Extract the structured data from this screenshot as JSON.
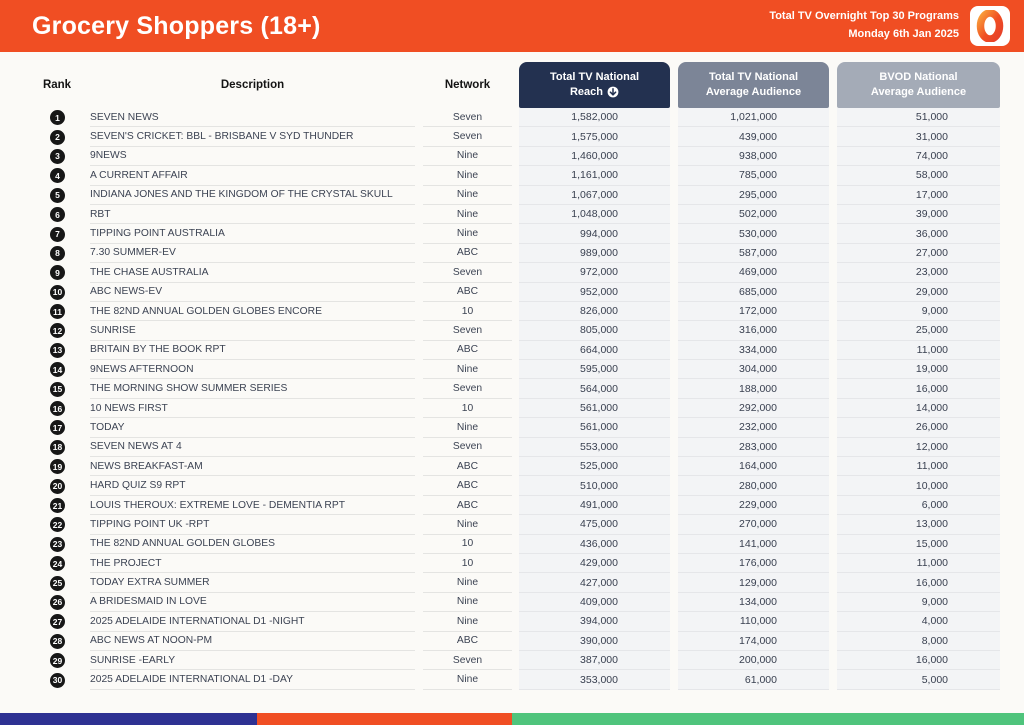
{
  "header": {
    "title": "Grocery Shoppers (18+)",
    "subtitle_line1": "Total TV Overnight Top 30 Programs",
    "subtitle_line2": "Monday 6th Jan 2025",
    "logo_glyph": "0"
  },
  "table": {
    "columns": {
      "rank": "Rank",
      "description": "Description",
      "network": "Network",
      "reach_line1": "Total TV National",
      "reach_line2": "Reach",
      "avg_line1": "Total TV National",
      "avg_line2": "Average Audience",
      "bvod_line1": "BVOD National",
      "bvod_line2": "Average Audience"
    },
    "rows": [
      {
        "rank": "1",
        "description": "SEVEN NEWS",
        "network": "Seven",
        "reach": "1,582,000",
        "avg": "1,021,000",
        "bvod": "51,000"
      },
      {
        "rank": "2",
        "description": "SEVEN'S CRICKET: BBL - BRISBANE V SYD THUNDER",
        "network": "Seven",
        "reach": "1,575,000",
        "avg": "439,000",
        "bvod": "31,000"
      },
      {
        "rank": "3",
        "description": "9NEWS",
        "network": "Nine",
        "reach": "1,460,000",
        "avg": "938,000",
        "bvod": "74,000"
      },
      {
        "rank": "4",
        "description": "A CURRENT AFFAIR",
        "network": "Nine",
        "reach": "1,161,000",
        "avg": "785,000",
        "bvod": "58,000"
      },
      {
        "rank": "5",
        "description": "INDIANA JONES AND THE KINGDOM OF THE CRYSTAL SKULL",
        "network": "Nine",
        "reach": "1,067,000",
        "avg": "295,000",
        "bvod": "17,000"
      },
      {
        "rank": "6",
        "description": "RBT",
        "network": "Nine",
        "reach": "1,048,000",
        "avg": "502,000",
        "bvod": "39,000"
      },
      {
        "rank": "7",
        "description": "TIPPING POINT AUSTRALIA",
        "network": "Nine",
        "reach": "994,000",
        "avg": "530,000",
        "bvod": "36,000"
      },
      {
        "rank": "8",
        "description": "7.30 SUMMER-EV",
        "network": "ABC",
        "reach": "989,000",
        "avg": "587,000",
        "bvod": "27,000"
      },
      {
        "rank": "9",
        "description": "THE CHASE AUSTRALIA",
        "network": "Seven",
        "reach": "972,000",
        "avg": "469,000",
        "bvod": "23,000"
      },
      {
        "rank": "10",
        "description": "ABC NEWS-EV",
        "network": "ABC",
        "reach": "952,000",
        "avg": "685,000",
        "bvod": "29,000"
      },
      {
        "rank": "11",
        "description": "THE 82ND ANNUAL GOLDEN GLOBES ENCORE",
        "network": "10",
        "reach": "826,000",
        "avg": "172,000",
        "bvod": "9,000"
      },
      {
        "rank": "12",
        "description": "SUNRISE",
        "network": "Seven",
        "reach": "805,000",
        "avg": "316,000",
        "bvod": "25,000"
      },
      {
        "rank": "13",
        "description": "BRITAIN BY THE BOOK RPT",
        "network": "ABC",
        "reach": "664,000",
        "avg": "334,000",
        "bvod": "11,000"
      },
      {
        "rank": "14",
        "description": "9NEWS AFTERNOON",
        "network": "Nine",
        "reach": "595,000",
        "avg": "304,000",
        "bvod": "19,000"
      },
      {
        "rank": "15",
        "description": "THE MORNING SHOW SUMMER SERIES",
        "network": "Seven",
        "reach": "564,000",
        "avg": "188,000",
        "bvod": "16,000"
      },
      {
        "rank": "16",
        "description": "10 NEWS FIRST",
        "network": "10",
        "reach": "561,000",
        "avg": "292,000",
        "bvod": "14,000"
      },
      {
        "rank": "17",
        "description": "TODAY",
        "network": "Nine",
        "reach": "561,000",
        "avg": "232,000",
        "bvod": "26,000"
      },
      {
        "rank": "18",
        "description": "SEVEN NEWS AT 4",
        "network": "Seven",
        "reach": "553,000",
        "avg": "283,000",
        "bvod": "12,000"
      },
      {
        "rank": "19",
        "description": "NEWS BREAKFAST-AM",
        "network": "ABC",
        "reach": "525,000",
        "avg": "164,000",
        "bvod": "11,000"
      },
      {
        "rank": "20",
        "description": "HARD QUIZ S9 RPT",
        "network": "ABC",
        "reach": "510,000",
        "avg": "280,000",
        "bvod": "10,000"
      },
      {
        "rank": "21",
        "description": "LOUIS THEROUX: EXTREME LOVE - DEMENTIA RPT",
        "network": "ABC",
        "reach": "491,000",
        "avg": "229,000",
        "bvod": "6,000"
      },
      {
        "rank": "22",
        "description": "TIPPING POINT UK -RPT",
        "network": "Nine",
        "reach": "475,000",
        "avg": "270,000",
        "bvod": "13,000"
      },
      {
        "rank": "23",
        "description": "THE 82ND ANNUAL GOLDEN GLOBES",
        "network": "10",
        "reach": "436,000",
        "avg": "141,000",
        "bvod": "15,000"
      },
      {
        "rank": "24",
        "description": "THE PROJECT",
        "network": "10",
        "reach": "429,000",
        "avg": "176,000",
        "bvod": "11,000"
      },
      {
        "rank": "25",
        "description": "TODAY EXTRA SUMMER",
        "network": "Nine",
        "reach": "427,000",
        "avg": "129,000",
        "bvod": "16,000"
      },
      {
        "rank": "26",
        "description": "A BRIDESMAID IN LOVE",
        "network": "Nine",
        "reach": "409,000",
        "avg": "134,000",
        "bvod": "9,000"
      },
      {
        "rank": "27",
        "description": "2025 ADELAIDE INTERNATIONAL D1 -NIGHT",
        "network": "Nine",
        "reach": "394,000",
        "avg": "110,000",
        "bvod": "4,000"
      },
      {
        "rank": "28",
        "description": "ABC NEWS AT NOON-PM",
        "network": "ABC",
        "reach": "390,000",
        "avg": "174,000",
        "bvod": "8,000"
      },
      {
        "rank": "29",
        "description": "SUNRISE -EARLY",
        "network": "Seven",
        "reach": "387,000",
        "avg": "200,000",
        "bvod": "16,000"
      },
      {
        "rank": "30",
        "description": "2025 ADELAIDE INTERNATIONAL D1 -DAY",
        "network": "Nine",
        "reach": "353,000",
        "avg": "61,000",
        "bvod": "5,000"
      }
    ]
  },
  "footer": {
    "segments": [
      {
        "name": "navy",
        "color": "#2E3192",
        "width": "25.1%"
      },
      {
        "name": "orange",
        "color": "#F04E23",
        "width": "24.9%"
      },
      {
        "name": "green",
        "color": "#4FC47C",
        "width": "50%"
      }
    ]
  },
  "colors": {
    "header_bar": "#F04E23",
    "reach_header": "#233150",
    "avg_header": "#7C8597",
    "bvod_header": "#A4ABB7",
    "page_background": "#FBFAF7",
    "numeric_cell": "#F3F4F6",
    "rank_badge": "#171717",
    "row_text": "#3C4353"
  }
}
